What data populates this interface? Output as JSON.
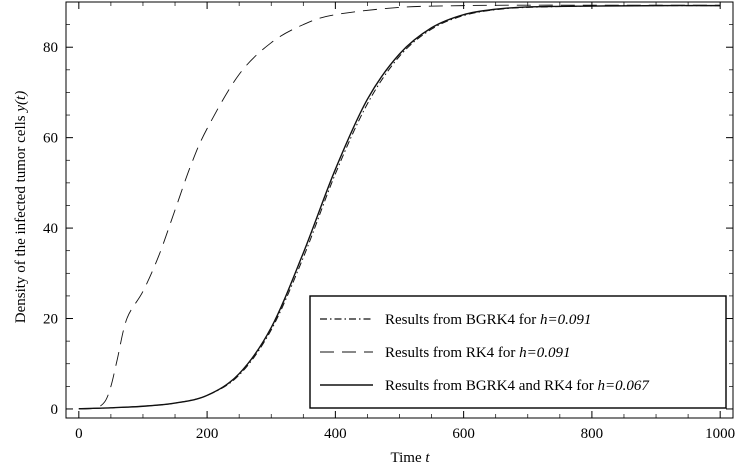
{
  "chart_data": {
    "type": "line",
    "xlabel": "Time",
    "xlabel_var": "t",
    "ylabel": "Density of the infected tumor cells",
    "ylabel_var": "y(t)",
    "xlim": [
      -20,
      1020
    ],
    "ylim": [
      -2,
      90
    ],
    "xticks": [
      0,
      200,
      400,
      600,
      800,
      1000
    ],
    "yticks": [
      0,
      20,
      40,
      60,
      80
    ],
    "xtick_labels": [
      "0",
      "200",
      "400",
      "600",
      "800",
      "1000"
    ],
    "ytick_labels": [
      "0",
      "20",
      "40",
      "60",
      "80"
    ],
    "grid": false,
    "legend_position": "bottom-right",
    "series": [
      {
        "prefix": "Results from BGRK4 for ",
        "hvar": "h=0.091",
        "style": "dashdot",
        "x": [
          0,
          50,
          100,
          150,
          200,
          250,
          300,
          350,
          400,
          450,
          500,
          550,
          600,
          650,
          700,
          800,
          900,
          1000
        ],
        "y": [
          0.05,
          0.25,
          0.6,
          1.3,
          3.0,
          7.5,
          17.5,
          33.5,
          52.0,
          67.5,
          78.0,
          84.0,
          87.0,
          88.3,
          88.8,
          89.1,
          89.2,
          89.2
        ]
      },
      {
        "prefix": "Results from RK4 for ",
        "hvar": "h=0.091",
        "style": "dashed",
        "x": [
          0,
          25,
          40,
          50,
          60,
          75,
          100,
          125,
          150,
          175,
          200,
          250,
          300,
          350,
          400,
          500,
          600,
          700,
          800,
          900,
          1000
        ],
        "y": [
          0.0,
          0.2,
          1.5,
          5.0,
          11.0,
          20.0,
          26.0,
          34.0,
          44.0,
          54.0,
          62.0,
          74.0,
          81.0,
          85.0,
          87.2,
          88.8,
          89.2,
          89.3,
          89.3,
          89.3,
          89.3
        ]
      },
      {
        "prefix": "Results from BGRK4 and RK4 for ",
        "hvar": "h=0.067",
        "style": "solid",
        "x": [
          0,
          50,
          100,
          150,
          200,
          250,
          300,
          350,
          400,
          450,
          500,
          550,
          600,
          650,
          700,
          800,
          900,
          1000
        ],
        "y": [
          0.05,
          0.25,
          0.6,
          1.3,
          3.0,
          7.8,
          18.0,
          34.5,
          53.0,
          68.5,
          78.5,
          84.3,
          87.2,
          88.4,
          88.9,
          89.1,
          89.2,
          89.2
        ]
      }
    ]
  }
}
